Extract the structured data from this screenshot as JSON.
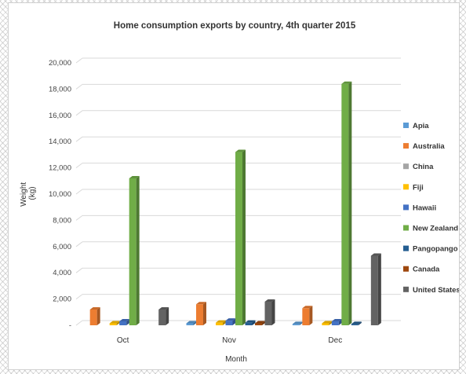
{
  "chart_data": {
    "type": "bar",
    "title": "Home consumption exports by country, 4th quarter 2015",
    "xlabel": "Month",
    "ylabel": "Weight (kg)",
    "ylim": [
      0,
      20000
    ],
    "yticks": [
      0,
      2000,
      4000,
      6000,
      8000,
      10000,
      12000,
      14000,
      16000,
      18000,
      20000
    ],
    "ytick_labels": [
      "-",
      "2,000",
      "4,000",
      "6,000",
      "8,000",
      "10,000",
      "12,000",
      "14,000",
      "16,000",
      "18,000",
      "20,000"
    ],
    "categories": [
      "Oct",
      "Nov",
      "Dec"
    ],
    "grid": true,
    "legend_position": "right",
    "style": "3d-clustered-column",
    "series": [
      {
        "name": "Apia",
        "color": "#5B9BD5",
        "values": [
          0,
          150,
          100
        ]
      },
      {
        "name": "Australia",
        "color": "#ED7D31",
        "values": [
          1200,
          1600,
          1300
        ]
      },
      {
        "name": "China",
        "color": "#A5A5A5",
        "values": [
          0,
          0,
          0
        ]
      },
      {
        "name": "Fiji",
        "color": "#FFC000",
        "values": [
          150,
          200,
          150
        ]
      },
      {
        "name": "Hawaii",
        "color": "#4472C4",
        "values": [
          300,
          350,
          300
        ]
      },
      {
        "name": "New Zealand",
        "color": "#70AD47",
        "values": [
          11200,
          13200,
          18400
        ]
      },
      {
        "name": "Pangopango",
        "color": "#255E91",
        "values": [
          0,
          200,
          100
        ]
      },
      {
        "name": "Canada",
        "color": "#9E480E",
        "values": [
          0,
          150,
          0
        ]
      },
      {
        "name": "United States",
        "color": "#636363",
        "values": [
          1200,
          1800,
          5300
        ]
      }
    ]
  }
}
